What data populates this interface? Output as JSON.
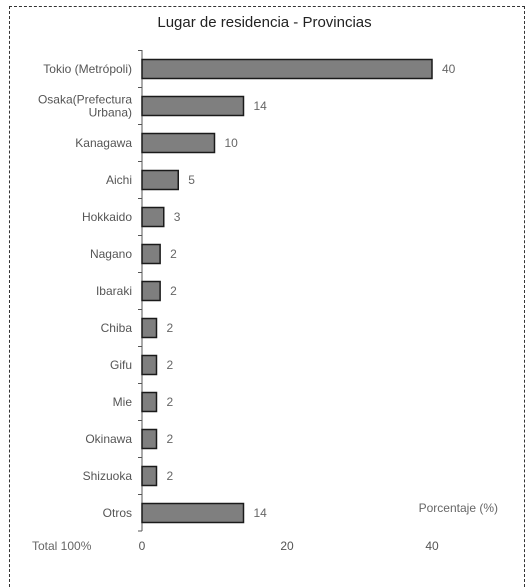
{
  "chart_data": {
    "type": "bar",
    "orientation": "horizontal",
    "title": "Lugar de residencia - Provincias",
    "categories": [
      [
        "Tokio (Metrópoli)"
      ],
      [
        "Osaka(Prefectura",
        "Urbana)"
      ],
      [
        "Kanagawa"
      ],
      [
        "Aichi"
      ],
      [
        "Hokkaido"
      ],
      [
        "Nagano"
      ],
      [
        "Ibaraki"
      ],
      [
        "Chiba"
      ],
      [
        "Gifu"
      ],
      [
        "Mie"
      ],
      [
        "Okinawa"
      ],
      [
        "Shizuoka"
      ],
      [
        "Otros"
      ]
    ],
    "values": [
      40,
      14,
      10,
      5,
      3,
      2.5,
      2.5,
      2,
      2,
      2,
      2,
      2,
      14
    ],
    "value_labels": [
      "40",
      "14",
      "10",
      "5",
      "3",
      "2",
      "2",
      "2",
      "2",
      "2",
      "2",
      "2",
      "14"
    ],
    "xlim": [
      0,
      40
    ],
    "xticks": [
      "0",
      "20",
      "40"
    ],
    "xlabel": "Porcentaje (%)",
    "footnote": "Total 100%",
    "grid": false,
    "colors": {
      "bar_fill": "#7f7f7f",
      "bar_stroke": "#1a1a1a"
    }
  }
}
